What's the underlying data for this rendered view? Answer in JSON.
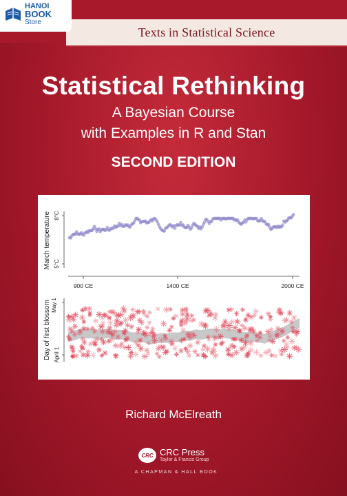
{
  "store_logo": {
    "line1": "HANOI",
    "line2": "BOOK",
    "line3": "Store"
  },
  "series": "Texts in Statistical Science",
  "title": "Statistical Rethinking",
  "subtitle_line1": "A Bayesian Course",
  "subtitle_line2": "with Examples in R and Stan",
  "edition": "SECOND EDITION",
  "figure": {
    "top_panel": {
      "ylabel": "March temperature",
      "ytick_high": "8°C",
      "ytick_low": "5°C"
    },
    "xticks": [
      "900 CE",
      "1400 CE",
      "2000 CE"
    ],
    "bottom_panel": {
      "ylabel": "Day of first blossom",
      "ytick_high": "May 1",
      "ytick_low": "April 1"
    },
    "colors": {
      "temperature": "#8c86c9",
      "blossom": "#e0485a",
      "band": "#9a9a9a"
    }
  },
  "author": "Richard McElreath",
  "publisher": {
    "logo_text": "CRC",
    "name": "CRC Press",
    "group": "Taylor & Francis Group",
    "imprint": "A CHAPMAN & HALL BOOK"
  }
}
